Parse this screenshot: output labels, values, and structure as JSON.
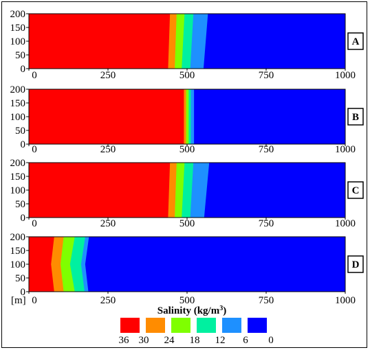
{
  "chart_data": {
    "type": "heatmap",
    "title": "",
    "quantity": "Salinity (kg/m³)",
    "depth_unit": "[m]",
    "colorscale": {
      "title_prefix": "Salinity (kg/m",
      "title_sup": "3",
      "title_suffix": ")",
      "tick_labels": [
        "36",
        "30",
        "24",
        "18",
        "12",
        "6",
        "0"
      ],
      "bins": [
        {
          "range": [
            30,
            36
          ],
          "color": "#ff0000"
        },
        {
          "range": [
            24,
            30
          ],
          "color": "#ff8c00"
        },
        {
          "range": [
            18,
            24
          ],
          "color": "#7fff00"
        },
        {
          "range": [
            12,
            18
          ],
          "color": "#00f0a0"
        },
        {
          "range": [
            6,
            12
          ],
          "color": "#1e90ff"
        },
        {
          "range": [
            0,
            6
          ],
          "color": "#0000ff"
        }
      ]
    },
    "panels": [
      {
        "label": "A",
        "xlim": [
          0,
          1000
        ],
        "ylim": [
          0,
          200
        ],
        "x_ticks": [
          "0",
          "250",
          "500",
          "750",
          "1000"
        ],
        "y_ticks": [
          "200",
          "150",
          "100",
          "50",
          "0"
        ],
        "depths": [
          0,
          200
        ],
        "fronts": [
          {
            "salinity": 30,
            "x": [
              446,
              440
            ]
          },
          {
            "salinity": 24,
            "x": [
              467,
              461
            ]
          },
          {
            "salinity": 18,
            "x": [
              492,
              483
            ]
          },
          {
            "salinity": 12,
            "x": [
              520,
              510
            ]
          },
          {
            "salinity": 6,
            "x": [
              566,
              552
            ]
          }
        ]
      },
      {
        "label": "B",
        "xlim": [
          0,
          1000
        ],
        "ylim": [
          0,
          200
        ],
        "x_ticks": [
          "0",
          "250",
          "500",
          "750",
          "1000"
        ],
        "y_ticks": [
          "200",
          "150",
          "100",
          "50",
          "0"
        ],
        "depths": [
          0,
          200
        ],
        "fronts": [
          {
            "salinity": 30,
            "x": [
              490,
              490
            ]
          },
          {
            "salinity": 24,
            "x": [
              497,
              497
            ]
          },
          {
            "salinity": 18,
            "x": [
              505,
              505
            ]
          },
          {
            "salinity": 12,
            "x": [
              512,
              512
            ]
          },
          {
            "salinity": 6,
            "x": [
              522,
              522
            ]
          }
        ]
      },
      {
        "label": "C",
        "xlim": [
          0,
          1000
        ],
        "ylim": [
          0,
          200
        ],
        "x_ticks": [
          "0",
          "250",
          "500",
          "750",
          "1000"
        ],
        "y_ticks": [
          "200",
          "150",
          "100",
          "50",
          "0"
        ],
        "depths": [
          0,
          200
        ],
        "fronts": [
          {
            "salinity": 30,
            "x": [
              446,
              440
            ]
          },
          {
            "salinity": 24,
            "x": [
              467,
              461
            ]
          },
          {
            "salinity": 18,
            "x": [
              492,
              483
            ]
          },
          {
            "salinity": 12,
            "x": [
              520,
              510
            ]
          },
          {
            "salinity": 6,
            "x": [
              570,
              554
            ]
          }
        ]
      },
      {
        "label": "D",
        "xlim": [
          0,
          1000
        ],
        "ylim": [
          0,
          200
        ],
        "x_ticks": [
          "0",
          "250",
          "500",
          "750",
          "1000"
        ],
        "y_ticks": [
          "200",
          "150",
          "100",
          "50",
          "0"
        ],
        "depths": [
          0,
          100,
          200
        ],
        "fronts": [
          {
            "salinity": 30,
            "x": [
              80,
              70,
              80
            ]
          },
          {
            "salinity": 24,
            "x": [
              110,
              100,
              110
            ]
          },
          {
            "salinity": 18,
            "x": [
              145,
              130,
              145
            ]
          },
          {
            "salinity": 12,
            "x": [
              178,
              165,
              176
            ]
          },
          {
            "salinity": 6,
            "x": [
              190,
              178,
              188
            ]
          }
        ]
      }
    ]
  }
}
